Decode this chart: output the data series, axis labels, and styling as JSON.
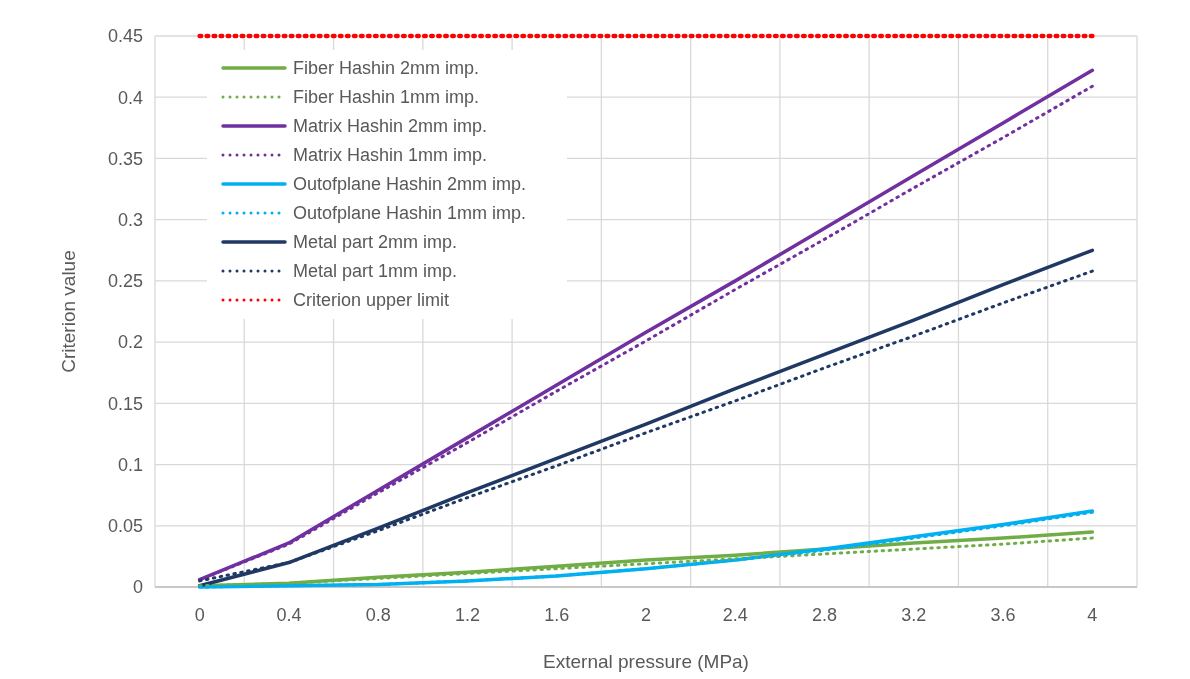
{
  "chart_data": {
    "type": "line",
    "xlabel": "External pressure (MPa)",
    "ylabel": "Criterion value",
    "categories": [
      "0",
      "0.4",
      "0.8",
      "1.2",
      "1.6",
      "2",
      "2.4",
      "2.8",
      "3.2",
      "3.6",
      "4"
    ],
    "ylim": [
      0,
      0.45
    ],
    "yticks": [
      0,
      0.05,
      0.1,
      0.15,
      0.2,
      0.25,
      0.3,
      0.35,
      0.4,
      0.45
    ],
    "grid": true,
    "legend": "top left",
    "marker": "none",
    "series": [
      {
        "name": "Fiber Hashin 2mm imp.",
        "color": "#70ad47",
        "line_style": "solid",
        "values": [
          0.001,
          0.003,
          0.008,
          0.012,
          0.017,
          0.022,
          0.026,
          0.031,
          0.036,
          0.04,
          0.045
        ]
      },
      {
        "name": "Fiber Hashin 1mm imp.",
        "color": "#70ad47",
        "line_style": "dotted",
        "values": [
          0.001,
          0.003,
          0.007,
          0.011,
          0.015,
          0.019,
          0.023,
          0.027,
          0.031,
          0.035,
          0.04
        ]
      },
      {
        "name": "Matrix Hashin 2mm imp.",
        "color": "#7030a0",
        "line_style": "solid",
        "values": [
          0.006,
          0.036,
          0.079,
          0.122,
          0.165,
          0.208,
          0.25,
          0.293,
          0.336,
          0.379,
          0.422
        ]
      },
      {
        "name": "Matrix Hashin 1mm imp.",
        "color": "#7030a0",
        "line_style": "dotted",
        "values": [
          0.006,
          0.035,
          0.077,
          0.118,
          0.16,
          0.201,
          0.243,
          0.284,
          0.326,
          0.367,
          0.409
        ]
      },
      {
        "name": "Outofplane Hashin 2mm imp.",
        "color": "#00b0f0",
        "line_style": "solid",
        "values": [
          0,
          0.001,
          0.002,
          0.005,
          0.009,
          0.015,
          0.022,
          0.031,
          0.041,
          0.051,
          0.062
        ]
      },
      {
        "name": "Outofplane Hashin 1mm imp.",
        "color": "#00b0f0",
        "line_style": "dotted",
        "values": [
          0,
          0.001,
          0.002,
          0.005,
          0.009,
          0.015,
          0.022,
          0.03,
          0.04,
          0.05,
          0.061
        ]
      },
      {
        "name": "Metal part 2mm imp.",
        "color": "#203864",
        "line_style": "solid",
        "values": [
          0.001,
          0.02,
          0.048,
          0.077,
          0.105,
          0.133,
          0.162,
          0.19,
          0.218,
          0.247,
          0.275
        ]
      },
      {
        "name": "Metal part 1mm imp.",
        "color": "#203864",
        "line_style": "dotted",
        "values": [
          0.005,
          0.02,
          0.046,
          0.073,
          0.099,
          0.126,
          0.152,
          0.179,
          0.205,
          0.232,
          0.258
        ]
      },
      {
        "name": "Criterion upper limit",
        "color": "#ff0000",
        "line_style": "dotted",
        "values": [
          0.45,
          0.45,
          0.45,
          0.45,
          0.45,
          0.45,
          0.45,
          0.45,
          0.45,
          0.45,
          0.45
        ]
      }
    ]
  }
}
